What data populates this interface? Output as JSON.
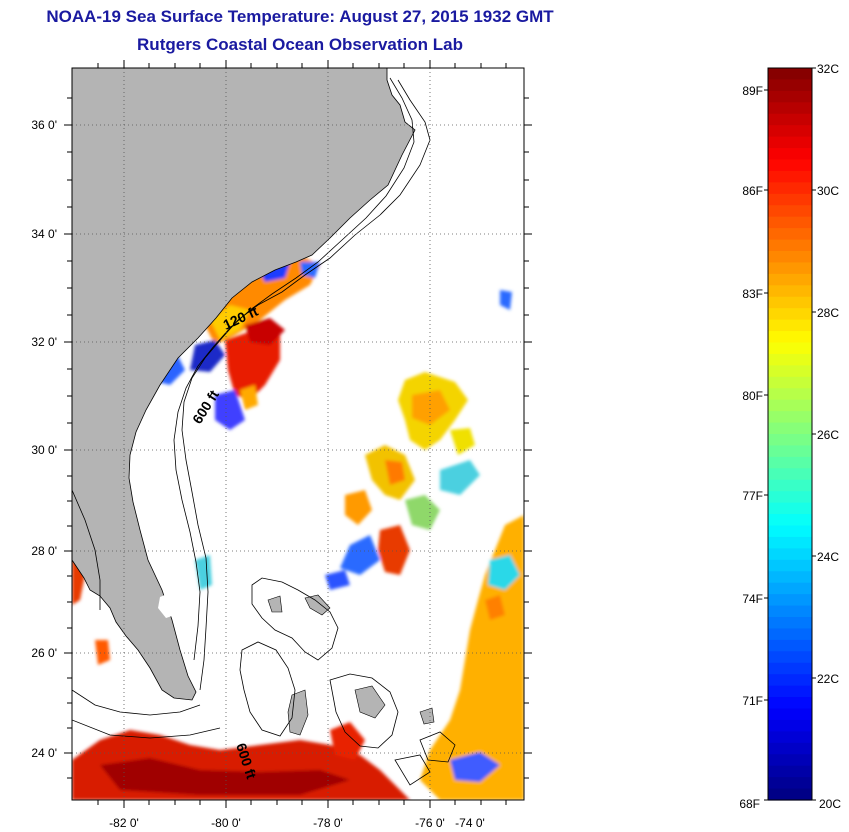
{
  "title": "NOAA-19 Sea Surface Temperature:  August 27, 2015 1932 GMT",
  "subtitle": "Rutgers Coastal Ocean Observation Lab",
  "map": {
    "lat_labels": [
      "36 0'",
      "34 0'",
      "32 0'",
      "30 0'",
      "28 0'",
      "26 0'",
      "24 0'"
    ],
    "lon_labels": [
      "-82 0'",
      "-80 0'",
      "-78 0'",
      "-76 0'",
      "-74 0'"
    ],
    "contour_labels": [
      "120 ft",
      "600 ft",
      "600 ft"
    ],
    "land_color": "#b4b4b4",
    "ocean_color": "#ffffff"
  },
  "colorbar": {
    "range_c": [
      20,
      32
    ],
    "celsius_labels": [
      "32C",
      "30C",
      "28C",
      "26C",
      "24C",
      "22C",
      "20C"
    ],
    "fahrenheit_labels": [
      "89F",
      "86F",
      "83F",
      "80F",
      "77F",
      "74F",
      "71F",
      "68F"
    ],
    "colormap": "jet"
  }
}
